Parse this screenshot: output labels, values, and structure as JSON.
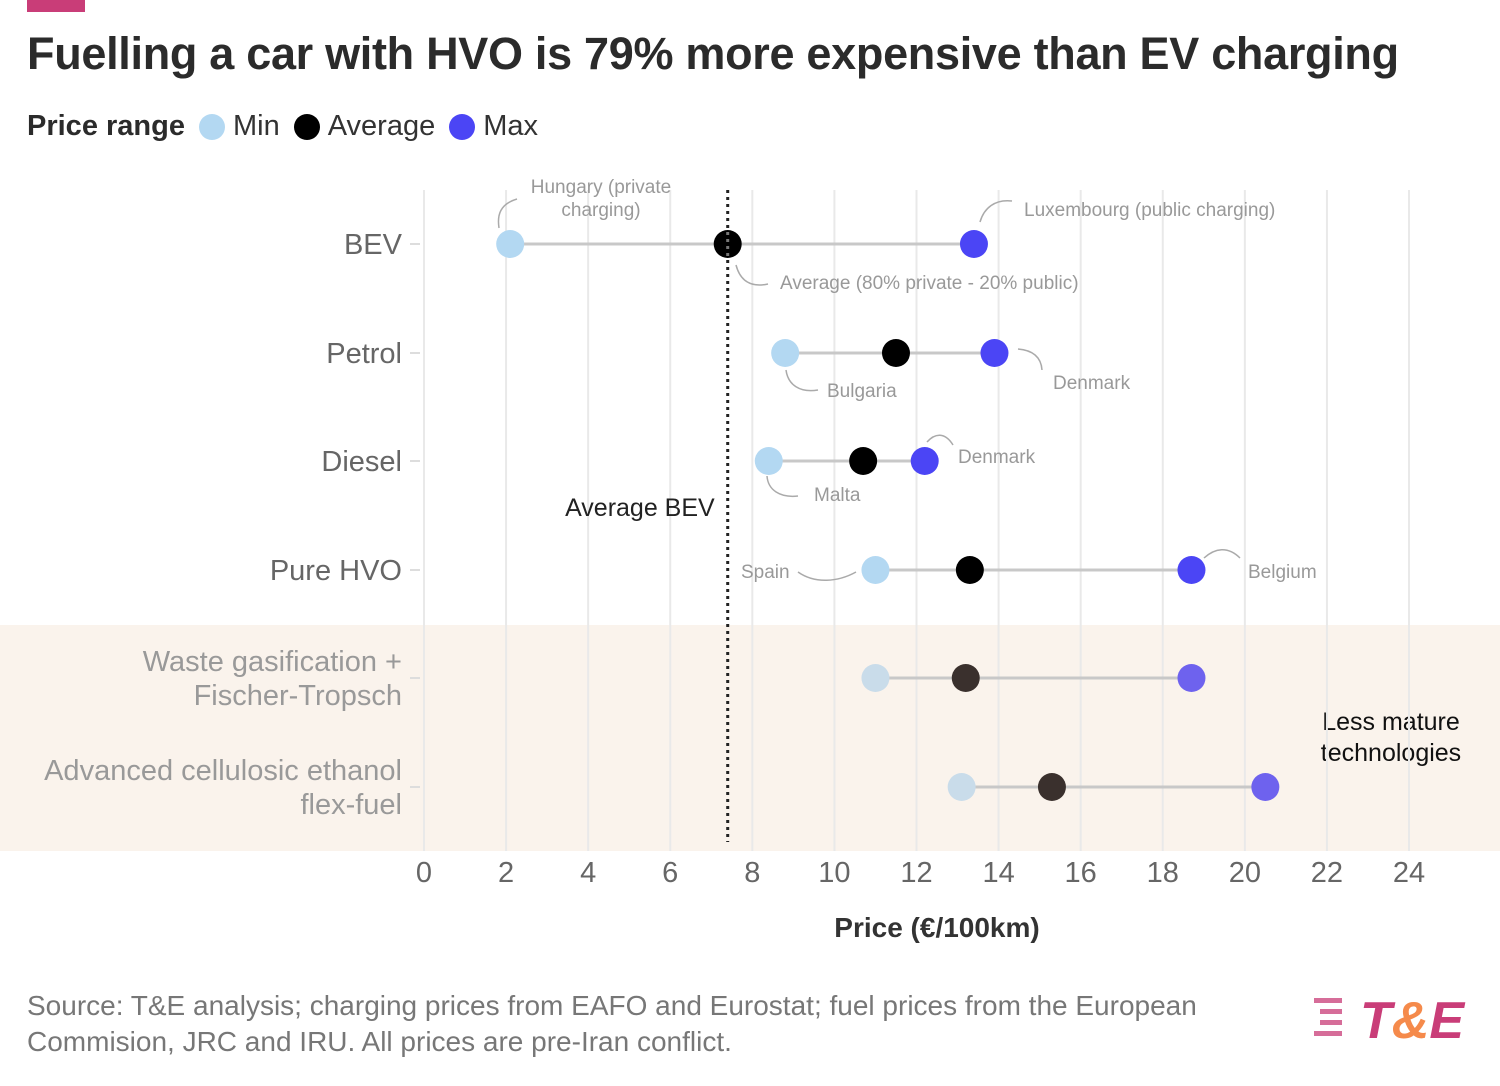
{
  "title": "Fuelling a car with HVO is 79% more expensive than EV charging",
  "legend": {
    "title": "Price range",
    "items": [
      {
        "label": "Min",
        "color": "#b3d8f2"
      },
      {
        "label": "Average",
        "color": "#000000"
      },
      {
        "label": "Max",
        "color": "#4b45f5"
      }
    ]
  },
  "chart_data": {
    "type": "dumbbell",
    "xlabel": "Price (€/100km)",
    "xlim": [
      0,
      24
    ],
    "xticks": [
      0,
      2,
      4,
      6,
      8,
      10,
      12,
      14,
      16,
      18,
      20,
      22,
      24
    ],
    "grid": "vertical",
    "categories": [
      "BEV",
      "Petrol",
      "Diesel",
      "Pure HVO",
      "Waste gasification + Fischer-Tropsch",
      "Advanced cellulosic ethanol flex-fuel"
    ],
    "category_lines": [
      [
        "BEV"
      ],
      [
        "Petrol"
      ],
      [
        "Diesel"
      ],
      [
        "Pure HVO"
      ],
      [
        "Waste gasification +",
        "Fischer-Tropsch"
      ],
      [
        "Advanced cellulosic ethanol",
        "flex-fuel"
      ]
    ],
    "min": [
      2.1,
      8.8,
      8.4,
      11.0,
      11.0,
      13.1
    ],
    "average": [
      7.4,
      11.5,
      10.7,
      13.3,
      13.2,
      15.3
    ],
    "max": [
      13.4,
      13.9,
      12.2,
      18.7,
      18.7,
      20.5
    ],
    "reference_line": {
      "value": 7.4,
      "label": "Average BEV"
    },
    "shaded_region": {
      "categories": [
        "Waste gasification + Fischer-Tropsch",
        "Advanced cellulosic ethanol flex-fuel"
      ],
      "label_lines": [
        "Less mature",
        "technologies"
      ],
      "color": "#faf3ec"
    },
    "annotations": [
      {
        "category": "BEV",
        "point": "min",
        "lines": [
          "Hungary (private",
          "charging)"
        ]
      },
      {
        "category": "BEV",
        "point": "max",
        "lines": [
          "Luxembourg (public charging)"
        ]
      },
      {
        "category": "BEV",
        "point": "average",
        "lines": [
          "Average (80% private - 20% public)"
        ]
      },
      {
        "category": "Petrol",
        "point": "min",
        "lines": [
          "Bulgaria"
        ]
      },
      {
        "category": "Petrol",
        "point": "max",
        "lines": [
          "Denmark"
        ]
      },
      {
        "category": "Diesel",
        "point": "min",
        "lines": [
          "Malta"
        ]
      },
      {
        "category": "Diesel",
        "point": "max",
        "lines": [
          "Denmark"
        ]
      },
      {
        "category": "Pure HVO",
        "point": "min",
        "lines": [
          "Spain"
        ]
      },
      {
        "category": "Pure HVO",
        "point": "max",
        "lines": [
          "Belgium"
        ]
      }
    ]
  },
  "source": "Source: T&E analysis; charging prices from EAFO and Eurostat; fuel prices from the European Commision, JRC and IRU. All prices are pre-Iran conflict.",
  "logo": {
    "text": "T&E",
    "colors": [
      "#c93d78",
      "#f58a4b"
    ]
  }
}
